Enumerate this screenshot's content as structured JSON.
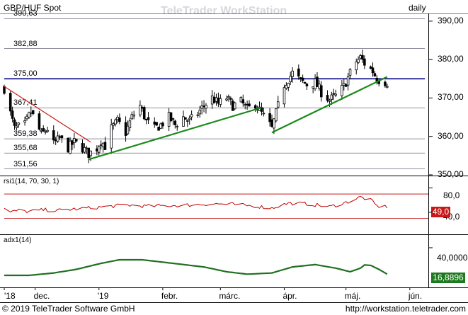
{
  "header": {
    "symbol": "GBP/HUF Spot",
    "watermark": "TeleTrader WorkStation",
    "interval": "daily"
  },
  "footer": {
    "copyright": "© 2019 TeleTrader Software GmbH",
    "url": "http://workstation.teletrader.com"
  },
  "colors": {
    "candle_up": "#ffffff",
    "candle_down": "#000000",
    "trend_support": "#1a8a1a",
    "trend_resistance": "#c82020",
    "level_line": "#000080",
    "rsi_line": "#c00000",
    "adx_line": "#207020",
    "rsi_badge": "#c81818",
    "adx_badge": "#1e7a1e"
  },
  "chart_data": [
    {
      "panel": "price",
      "type": "candlestick",
      "title": "GBP/HUF Spot",
      "interval": "daily",
      "ylim": [
        350,
        392
      ],
      "y_axis_ticks": [
        "390,00",
        "380,00",
        "370,00",
        "360,00",
        "350,00"
      ],
      "x_axis_labels": [
        "'18",
        "dec.",
        "'19",
        "febr.",
        "márc.",
        "ápr.",
        "máj.",
        "jún."
      ],
      "x_range": [
        "2018-11-16",
        "2019-06-10"
      ],
      "levels": [
        {
          "label": "390,63",
          "value": 390.63,
          "emphasis": false
        },
        {
          "label": "382,88",
          "value": 382.88,
          "emphasis": false
        },
        {
          "label": "375,00",
          "value": 375.0,
          "emphasis": true
        },
        {
          "label": "367,41",
          "value": 367.41,
          "emphasis": false
        },
        {
          "label": "359,38",
          "value": 359.38,
          "emphasis": false
        },
        {
          "label": "355,68",
          "value": 355.68,
          "emphasis": false
        },
        {
          "label": "351,56",
          "value": 351.56,
          "emphasis": false
        }
      ],
      "trendlines": [
        {
          "color": "trend_resistance",
          "from": [
            "2018-11-16",
            373.0
          ],
          "to": [
            "2018-12-28",
            358.5
          ]
        },
        {
          "color": "trend_support",
          "from": [
            "2018-12-27",
            354.0
          ],
          "to": [
            "2019-03-21",
            367.5
          ]
        },
        {
          "color": "trend_support",
          "from": [
            "2019-03-26",
            361.0
          ],
          "to": [
            "2019-05-21",
            375.5
          ]
        }
      ],
      "anchors": [
        [
          "2018-11-16",
          372.5
        ],
        [
          "2018-11-19",
          366.0
        ],
        [
          "2018-11-21",
          362.0
        ],
        [
          "2018-11-26",
          363.0
        ],
        [
          "2018-11-29",
          366.5
        ],
        [
          "2018-12-04",
          360.5
        ],
        [
          "2018-12-07",
          362.0
        ],
        [
          "2018-12-10",
          358.0
        ],
        [
          "2018-12-13",
          359.5
        ],
        [
          "2018-12-17",
          357.0
        ],
        [
          "2018-12-20",
          358.5
        ],
        [
          "2018-12-24",
          357.0
        ],
        [
          "2018-12-27",
          355.5
        ],
        [
          "2018-12-31",
          357.0
        ],
        [
          "2019-01-02",
          359.0
        ],
        [
          "2019-01-04",
          357.5
        ],
        [
          "2019-01-07",
          362.0
        ],
        [
          "2019-01-10",
          364.0
        ],
        [
          "2019-01-14",
          361.0
        ],
        [
          "2019-01-17",
          365.0
        ],
        [
          "2019-01-21",
          368.0
        ],
        [
          "2019-01-24",
          364.0
        ],
        [
          "2019-01-28",
          362.0
        ],
        [
          "2019-01-31",
          363.0
        ],
        [
          "2019-02-04",
          365.0
        ],
        [
          "2019-02-07",
          363.0
        ],
        [
          "2019-02-11",
          365.0
        ],
        [
          "2019-02-14",
          364.0
        ],
        [
          "2019-02-18",
          366.0
        ],
        [
          "2019-02-21",
          368.0
        ],
        [
          "2019-02-25",
          370.0
        ],
        [
          "2019-02-28",
          368.5
        ],
        [
          "2019-03-04",
          370.0
        ],
        [
          "2019-03-07",
          368.0
        ],
        [
          "2019-03-11",
          369.0
        ],
        [
          "2019-03-14",
          367.0
        ],
        [
          "2019-03-18",
          368.5
        ],
        [
          "2019-03-21",
          366.0
        ],
        [
          "2019-03-25",
          363.0
        ],
        [
          "2019-03-26",
          362.0
        ],
        [
          "2019-03-28",
          366.0
        ],
        [
          "2019-04-01",
          373.5
        ],
        [
          "2019-04-03",
          375.0
        ],
        [
          "2019-04-05",
          376.5
        ],
        [
          "2019-04-09",
          374.5
        ],
        [
          "2019-04-12",
          373.5
        ],
        [
          "2019-04-16",
          374.0
        ],
        [
          "2019-04-19",
          371.5
        ],
        [
          "2019-04-23",
          369.5
        ],
        [
          "2019-04-26",
          370.5
        ],
        [
          "2019-04-30",
          373.0
        ],
        [
          "2019-05-03",
          376.5
        ],
        [
          "2019-05-06",
          379.5
        ],
        [
          "2019-05-08",
          380.5
        ],
        [
          "2019-05-10",
          379.0
        ],
        [
          "2019-05-14",
          377.0
        ],
        [
          "2019-05-16",
          375.0
        ],
        [
          "2019-05-21",
          374.0
        ]
      ]
    },
    {
      "panel": "rsi",
      "type": "line",
      "label": "rsi1(14, 70, 30, 1)",
      "last_value": "49,0",
      "ylim": [
        5,
        98
      ],
      "y_axis_ticks": [
        "80,0",
        "40,0"
      ],
      "bands": [
        70,
        30
      ],
      "anchors": [
        [
          "2018-11-16",
          46
        ],
        [
          "2018-11-19",
          40
        ],
        [
          "2018-11-23",
          43
        ],
        [
          "2018-11-28",
          41
        ],
        [
          "2018-12-05",
          44
        ],
        [
          "2018-12-12",
          43
        ],
        [
          "2018-12-19",
          45
        ],
        [
          "2018-12-27",
          47
        ],
        [
          "2019-01-04",
          49
        ],
        [
          "2019-01-14",
          52
        ],
        [
          "2019-01-24",
          50
        ],
        [
          "2019-02-04",
          51
        ],
        [
          "2019-02-14",
          52
        ],
        [
          "2019-02-25",
          54
        ],
        [
          "2019-03-07",
          53
        ],
        [
          "2019-03-18",
          50
        ],
        [
          "2019-03-26",
          47
        ],
        [
          "2019-04-03",
          55
        ],
        [
          "2019-04-12",
          54
        ],
        [
          "2019-04-23",
          49
        ],
        [
          "2019-05-03",
          58
        ],
        [
          "2019-05-08",
          65
        ],
        [
          "2019-05-13",
          60
        ],
        [
          "2019-05-16",
          50
        ],
        [
          "2019-05-21",
          49
        ]
      ]
    },
    {
      "panel": "adx",
      "type": "line",
      "label": "adx1(14)",
      "last_value": "16,8896",
      "ylim": [
        7,
        50
      ],
      "y_axis_ticks": [
        "40,0000"
      ],
      "anchors": [
        [
          "2018-11-16",
          17
        ],
        [
          "2018-11-28",
          17
        ],
        [
          "2018-12-10",
          19
        ],
        [
          "2018-12-21",
          22
        ],
        [
          "2019-01-02",
          27
        ],
        [
          "2019-01-11",
          30
        ],
        [
          "2019-01-22",
          30
        ],
        [
          "2019-02-01",
          28
        ],
        [
          "2019-02-11",
          26
        ],
        [
          "2019-02-21",
          24
        ],
        [
          "2019-03-04",
          20
        ],
        [
          "2019-03-14",
          18
        ],
        [
          "2019-03-26",
          19
        ],
        [
          "2019-04-05",
          24
        ],
        [
          "2019-04-16",
          26
        ],
        [
          "2019-04-26",
          23
        ],
        [
          "2019-05-03",
          20
        ],
        [
          "2019-05-08",
          23
        ],
        [
          "2019-05-11",
          27
        ],
        [
          "2019-05-17",
          22
        ],
        [
          "2019-05-21",
          18
        ]
      ]
    }
  ]
}
